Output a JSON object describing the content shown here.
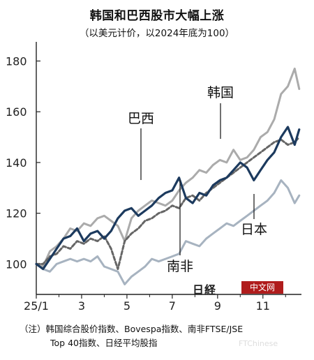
{
  "header": {
    "title": "韩国和巴西股市大幅上涨",
    "subtitle": "（以美元计价，以2024年底为100）"
  },
  "footnote": {
    "line1": "（注）韩国综合股价指数、Bovespa指数、南非FTSE/JSE",
    "line2": "Top 40指数、日经平均股指"
  },
  "watermark": {
    "logo_text": "日経",
    "box_text": "中文网",
    "site_text": "FTChinese"
  },
  "colors": {
    "korea": "#ababab",
    "brazil": "#1c3a5e",
    "south_africa": "#666666",
    "japan": "#a7b3c0"
  },
  "chart_data": {
    "type": "line",
    "title": "韩国和巴西股市大幅上涨",
    "subtitle": "（以美元计价，以2024年底为100）",
    "xlabel": "",
    "ylabel": "",
    "x_ticks": [
      "25/1",
      "3",
      "5",
      "7",
      "9",
      "11"
    ],
    "y_ticks": [
      100,
      120,
      140,
      160,
      180
    ],
    "xlim": [
      0,
      11.7
    ],
    "ylim": [
      88,
      187
    ],
    "grid": false,
    "series": [
      {
        "name": "韩国",
        "style": "solid",
        "x": [
          0,
          0.3,
          0.6,
          0.9,
          1.2,
          1.5,
          1.8,
          2.1,
          2.4,
          2.7,
          3.0,
          3.3,
          3.6,
          3.9,
          4.2,
          4.5,
          4.8,
          5.1,
          5.4,
          5.7,
          6.0,
          6.3,
          6.6,
          6.9,
          7.2,
          7.5,
          7.8,
          8.1,
          8.4,
          8.7,
          9.0,
          9.3,
          9.6,
          9.9,
          10.2,
          10.5,
          10.8,
          11.1,
          11.4,
          11.6
        ],
        "y": [
          100,
          99,
          105,
          107,
          110,
          114,
          113,
          116,
          115,
          118,
          119,
          117,
          115,
          109,
          118,
          121,
          123,
          125,
          124,
          123,
          125,
          129,
          132,
          134,
          137,
          136,
          139,
          141,
          140,
          145,
          141,
          142,
          145,
          150,
          152,
          157,
          167,
          170,
          177,
          169
        ]
      },
      {
        "name": "巴西",
        "style": "solid",
        "x": [
          0,
          0.3,
          0.6,
          0.9,
          1.2,
          1.5,
          1.8,
          2.1,
          2.4,
          2.7,
          3.0,
          3.3,
          3.6,
          3.9,
          4.2,
          4.5,
          4.8,
          5.1,
          5.4,
          5.7,
          6.0,
          6.3,
          6.6,
          6.9,
          7.2,
          7.5,
          7.8,
          8.1,
          8.4,
          8.7,
          9.0,
          9.3,
          9.6,
          9.9,
          10.2,
          10.5,
          10.8,
          11.1,
          11.4,
          11.6
        ],
        "y": [
          100,
          98,
          102,
          106,
          110,
          111,
          114,
          109,
          112,
          113,
          110,
          113,
          118,
          121,
          122,
          119,
          121,
          123,
          126,
          128,
          129,
          134,
          126,
          124,
          128,
          127,
          131,
          133,
          134,
          137,
          140,
          138,
          133,
          137,
          141,
          144,
          150,
          154,
          147,
          153
        ]
      },
      {
        "name": "南非",
        "style": "dashed",
        "x": [
          0,
          0.3,
          0.6,
          0.9,
          1.2,
          1.5,
          1.8,
          2.1,
          2.4,
          2.7,
          3.0,
          3.3,
          3.6,
          3.9,
          4.2,
          4.5,
          4.8,
          5.1,
          5.4,
          5.7,
          6.0,
          6.3,
          6.6,
          6.9,
          7.2,
          7.5,
          7.8,
          8.1,
          8.4,
          8.7,
          9.0,
          9.3,
          9.6,
          9.9,
          10.2,
          10.5,
          10.8,
          11.1,
          11.4,
          11.6
        ],
        "y": [
          100,
          100,
          103,
          104,
          107,
          106,
          109,
          108,
          110,
          109,
          111,
          106,
          98,
          109,
          112,
          114,
          117,
          118,
          120,
          121,
          123,
          122,
          126,
          127,
          125,
          128,
          130,
          132,
          134,
          136,
          138,
          140,
          142,
          144,
          146,
          148,
          149,
          147,
          148,
          150
        ]
      },
      {
        "name": "日本",
        "style": "solid",
        "x": [
          0,
          0.3,
          0.6,
          0.9,
          1.2,
          1.5,
          1.8,
          2.1,
          2.4,
          2.7,
          3.0,
          3.3,
          3.6,
          3.9,
          4.2,
          4.5,
          4.8,
          5.1,
          5.4,
          5.7,
          6.0,
          6.3,
          6.6,
          6.9,
          7.2,
          7.5,
          7.8,
          8.1,
          8.4,
          8.7,
          9.0,
          9.3,
          9.6,
          9.9,
          10.2,
          10.5,
          10.8,
          11.1,
          11.4,
          11.6
        ],
        "y": [
          100,
          98,
          97,
          100,
          101,
          102,
          101,
          102,
          101,
          103,
          99,
          98,
          97,
          92,
          95,
          97,
          99,
          102,
          101,
          102,
          103,
          104,
          109,
          108,
          107,
          110,
          112,
          114,
          116,
          115,
          117,
          119,
          121,
          123,
          125,
          128,
          133,
          130,
          124,
          127
        ]
      }
    ],
    "annotations": [
      {
        "text": "韩国",
        "series": "韩国"
      },
      {
        "text": "巴西",
        "series": "巴西"
      },
      {
        "text": "南非",
        "series": "南非"
      },
      {
        "text": "日本",
        "series": "日本"
      }
    ]
  }
}
